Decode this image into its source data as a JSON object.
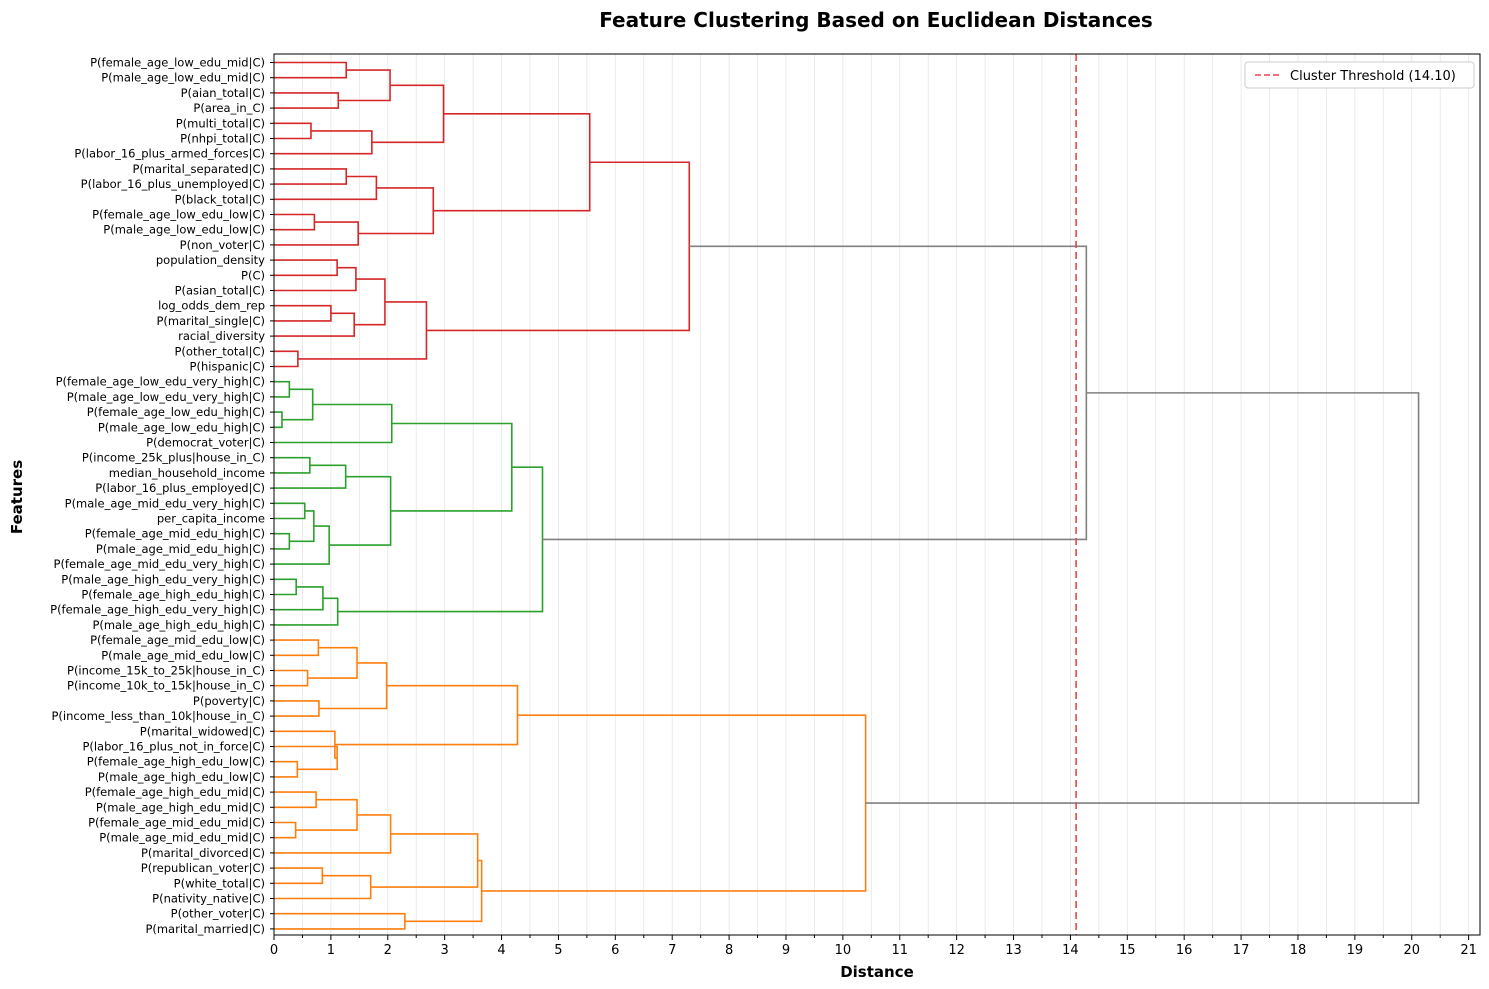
{
  "chart_data": {
    "type": "dendrogram",
    "title": "Feature Clustering Based on Euclidean Distances",
    "xlabel": "Distance",
    "ylabel": "Features",
    "xlim": [
      0,
      21.2
    ],
    "x_ticks": [
      0,
      1,
      2,
      3,
      4,
      5,
      6,
      7,
      8,
      9,
      10,
      11,
      12,
      13,
      14,
      15,
      16,
      17,
      18,
      19,
      20,
      21
    ],
    "grid": "vertical",
    "legend": {
      "position": "top-right",
      "entries": [
        {
          "label": "Cluster Threshold (14.10)",
          "color": "#e8474a",
          "style": "dashed"
        }
      ]
    },
    "threshold": 14.1,
    "leaves": [
      "P(female_age_low_edu_mid|C)",
      "P(male_age_low_edu_mid|C)",
      "P(aian_total|C)",
      "P(area_in_C)",
      "P(multi_total|C)",
      "P(nhpi_total|C)",
      "P(labor_16_plus_armed_forces|C)",
      "P(marital_separated|C)",
      "P(labor_16_plus_unemployed|C)",
      "P(black_total|C)",
      "P(female_age_low_edu_low|C)",
      "P(male_age_low_edu_low|C)",
      "P(non_voter|C)",
      "population_density",
      "P(C)",
      "P(asian_total|C)",
      "log_odds_dem_rep",
      "P(marital_single|C)",
      "racial_diversity",
      "P(other_total|C)",
      "P(hispanic|C)",
      "P(female_age_low_edu_very_high|C)",
      "P(male_age_low_edu_very_high|C)",
      "P(female_age_low_edu_high|C)",
      "P(male_age_low_edu_high|C)",
      "P(democrat_voter|C)",
      "P(income_25k_plus|house_in_C)",
      "median_household_income",
      "P(labor_16_plus_employed|C)",
      "P(male_age_mid_edu_very_high|C)",
      "per_capita_income",
      "P(female_age_mid_edu_high|C)",
      "P(male_age_mid_edu_high|C)",
      "P(female_age_mid_edu_very_high|C)",
      "P(male_age_high_edu_very_high|C)",
      "P(female_age_high_edu_high|C)",
      "P(female_age_high_edu_very_high|C)",
      "P(male_age_high_edu_high|C)",
      "P(female_age_mid_edu_low|C)",
      "P(male_age_mid_edu_low|C)",
      "P(income_15k_to_25k|house_in_C)",
      "P(income_10k_to_15k|house_in_C)",
      "P(poverty|C)",
      "P(income_less_than_10k|house_in_C)",
      "P(marital_widowed|C)",
      "P(labor_16_plus_not_in_force|C)",
      "P(female_age_high_edu_low|C)",
      "P(male_age_high_edu_low|C)",
      "P(female_age_high_edu_mid|C)",
      "P(male_age_high_edu_mid|C)",
      "P(female_age_mid_edu_mid|C)",
      "P(male_age_mid_edu_mid|C)",
      "P(marital_divorced|C)",
      "P(republican_voter|C)",
      "P(white_total|C)",
      "P(nativity_native|C)",
      "P(other_voter|C)",
      "P(marital_married|C)"
    ],
    "merges": [
      {
        "a": "L0",
        "b": "L1",
        "h": 1.27,
        "color": "#d62728"
      },
      {
        "a": "L2",
        "b": "L3",
        "h": 1.13,
        "color": "#d62728"
      },
      {
        "a": "M0",
        "b": "M1",
        "h": 2.04,
        "color": "#d62728"
      },
      {
        "a": "L4",
        "b": "L5",
        "h": 0.65,
        "color": "#d62728"
      },
      {
        "a": "M3",
        "b": "L6",
        "h": 1.72,
        "color": "#d62728"
      },
      {
        "a": "M2",
        "b": "M4",
        "h": 2.98,
        "color": "#d62728"
      },
      {
        "a": "L7",
        "b": "L8",
        "h": 1.27,
        "color": "#d62728"
      },
      {
        "a": "M6",
        "b": "L9",
        "h": 1.8,
        "color": "#d62728"
      },
      {
        "a": "L10",
        "b": "L11",
        "h": 0.71,
        "color": "#d62728"
      },
      {
        "a": "M8",
        "b": "L12",
        "h": 1.48,
        "color": "#d62728"
      },
      {
        "a": "M7",
        "b": "M9",
        "h": 2.8,
        "color": "#d62728"
      },
      {
        "a": "M5",
        "b": "M10",
        "h": 5.55,
        "color": "#d62728"
      },
      {
        "a": "L13",
        "b": "L14",
        "h": 1.11,
        "color": "#d62728"
      },
      {
        "a": "M12",
        "b": "L15",
        "h": 1.44,
        "color": "#d62728"
      },
      {
        "a": "L16",
        "b": "L17",
        "h": 1.0,
        "color": "#d62728"
      },
      {
        "a": "M14",
        "b": "L18",
        "h": 1.41,
        "color": "#d62728"
      },
      {
        "a": "M13",
        "b": "M15",
        "h": 1.95,
        "color": "#d62728"
      },
      {
        "a": "L19",
        "b": "L20",
        "h": 0.42,
        "color": "#d62728"
      },
      {
        "a": "M16",
        "b": "M17",
        "h": 2.68,
        "color": "#d62728"
      },
      {
        "a": "M11",
        "b": "M18",
        "h": 7.3,
        "color": "#d62728"
      },
      {
        "a": "L21",
        "b": "L22",
        "h": 0.27,
        "color": "#2ca02c"
      },
      {
        "a": "L23",
        "b": "L24",
        "h": 0.14,
        "color": "#2ca02c"
      },
      {
        "a": "M20",
        "b": "M21",
        "h": 0.68,
        "color": "#2ca02c"
      },
      {
        "a": "M22",
        "b": "L25",
        "h": 2.07,
        "color": "#2ca02c"
      },
      {
        "a": "L26",
        "b": "L27",
        "h": 0.63,
        "color": "#2ca02c"
      },
      {
        "a": "M24",
        "b": "L28",
        "h": 1.26,
        "color": "#2ca02c"
      },
      {
        "a": "L29",
        "b": "L30",
        "h": 0.54,
        "color": "#2ca02c"
      },
      {
        "a": "L31",
        "b": "L32",
        "h": 0.27,
        "color": "#2ca02c"
      },
      {
        "a": "M26",
        "b": "M27",
        "h": 0.7,
        "color": "#2ca02c"
      },
      {
        "a": "M28",
        "b": "L33",
        "h": 0.97,
        "color": "#2ca02c"
      },
      {
        "a": "M25",
        "b": "M29",
        "h": 2.05,
        "color": "#2ca02c"
      },
      {
        "a": "M23",
        "b": "M30",
        "h": 4.18,
        "color": "#2ca02c"
      },
      {
        "a": "L34",
        "b": "L35",
        "h": 0.39,
        "color": "#2ca02c"
      },
      {
        "a": "M32",
        "b": "L36",
        "h": 0.86,
        "color": "#2ca02c"
      },
      {
        "a": "M33",
        "b": "L37",
        "h": 1.12,
        "color": "#2ca02c"
      },
      {
        "a": "M31",
        "b": "M34",
        "h": 4.72,
        "color": "#2ca02c"
      },
      {
        "a": "L38",
        "b": "L39",
        "h": 0.78,
        "color": "#ff7f0e"
      },
      {
        "a": "L40",
        "b": "L41",
        "h": 0.59,
        "color": "#ff7f0e"
      },
      {
        "a": "M36",
        "b": "M37",
        "h": 1.46,
        "color": "#ff7f0e"
      },
      {
        "a": "L42",
        "b": "L43",
        "h": 0.79,
        "color": "#ff7f0e"
      },
      {
        "a": "M38",
        "b": "M39",
        "h": 1.98,
        "color": "#ff7f0e"
      },
      {
        "a": "L46",
        "b": "L47",
        "h": 0.41,
        "color": "#ff7f0e"
      },
      {
        "a": "L45",
        "b": "M41",
        "h": 1.11,
        "color": "#ff7f0e"
      },
      {
        "a": "L44",
        "b": "M42",
        "h": 1.07,
        "color": "#ff7f0e"
      },
      {
        "a": "M40",
        "b": "M43",
        "h": 4.28,
        "color": "#ff7f0e"
      },
      {
        "a": "L48",
        "b": "L49",
        "h": 0.74,
        "color": "#ff7f0e"
      },
      {
        "a": "L50",
        "b": "L51",
        "h": 0.38,
        "color": "#ff7f0e"
      },
      {
        "a": "M45",
        "b": "M46",
        "h": 1.46,
        "color": "#ff7f0e"
      },
      {
        "a": "M47",
        "b": "L52",
        "h": 2.05,
        "color": "#ff7f0e"
      },
      {
        "a": "L53",
        "b": "L54",
        "h": 0.85,
        "color": "#ff7f0e"
      },
      {
        "a": "M49",
        "b": "L55",
        "h": 1.7,
        "color": "#ff7f0e"
      },
      {
        "a": "M48",
        "b": "M50",
        "h": 3.58,
        "color": "#ff7f0e"
      },
      {
        "a": "L56",
        "b": "L57",
        "h": 2.3,
        "color": "#ff7f0e"
      },
      {
        "a": "M51",
        "b": "M52",
        "h": 3.65,
        "color": "#ff7f0e"
      },
      {
        "a": "M44",
        "b": "M53",
        "h": 10.4,
        "color": "#ff7f0e"
      },
      {
        "a": "M19",
        "b": "M35",
        "h": 14.28,
        "color": "#808080"
      },
      {
        "a": "M55",
        "b": "M54",
        "h": 20.12,
        "color": "#808080"
      }
    ]
  }
}
